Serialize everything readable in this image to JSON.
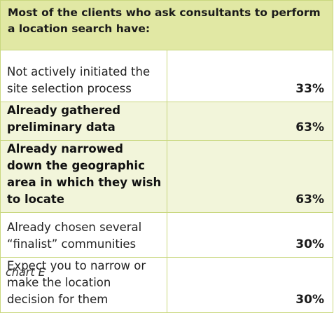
{
  "chart_data": {
    "type": "table",
    "title": "Most of the clients who ask consultants to perform a location search have:",
    "rows": [
      {
        "label": "Not actively initiated the site selection process",
        "value": "33%",
        "highlight": false
      },
      {
        "label": "Already gathered preliminary data",
        "value": "63%",
        "highlight": true
      },
      {
        "label": "Already narrowed down the geographic area in which they wish to locate",
        "value": "63%",
        "highlight": true
      },
      {
        "label": "Already chosen several “finalist” communities",
        "value": "30%",
        "highlight": false
      },
      {
        "label": "Expect you to narrow or make the location decision for them",
        "value": "30%",
        "highlight": false
      }
    ],
    "values": [
      33,
      63,
      63,
      30,
      30
    ],
    "unit": "%"
  },
  "caption": "chart E",
  "colors": {
    "header_fill": "#e1e8a4",
    "highlight_fill": "#f2f5da",
    "grid_line": "#c9d77f"
  }
}
